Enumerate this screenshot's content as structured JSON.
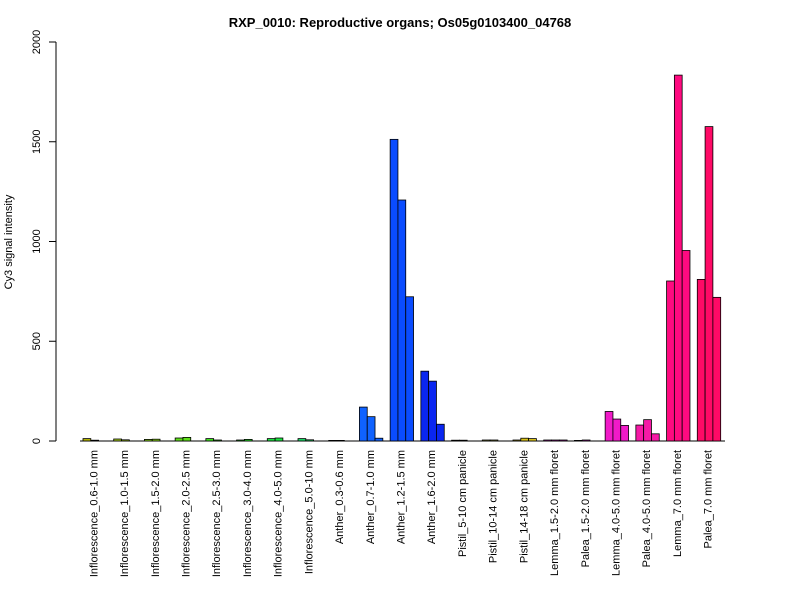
{
  "chart_data": {
    "type": "bar",
    "title": "RXP_0010: Reproductive organs; Os05g0103400_04768",
    "xlabel": "",
    "ylabel": "Cy3 signal intensity",
    "ylim": [
      0,
      2000
    ],
    "yticks": [
      0,
      500,
      1000,
      1500,
      2000
    ],
    "grid": false,
    "legend": "none",
    "groups": [
      {
        "label": "Inflorescence_0.6-1.0 mm",
        "color": "#b3b300",
        "values": [
          12,
          4
        ]
      },
      {
        "label": "Inflorescence_1.0-1.5 mm",
        "color": "#a6cc1a",
        "values": [
          10,
          6
        ]
      },
      {
        "label": "Inflorescence_1.5-2.0 mm",
        "color": "#8cd91a",
        "values": [
          8,
          9
        ]
      },
      {
        "label": "Inflorescence_2.0-2.5 mm",
        "color": "#5fe01a",
        "values": [
          15,
          18
        ]
      },
      {
        "label": "Inflorescence_2.5-3.0 mm",
        "color": "#3ce61a",
        "values": [
          12,
          5
        ]
      },
      {
        "label": "Inflorescence_3.0-4.0 mm",
        "color": "#26e626",
        "values": [
          5,
          8
        ]
      },
      {
        "label": "Inflorescence_4.0-5.0 mm",
        "color": "#1ae640",
        "values": [
          12,
          15
        ]
      },
      {
        "label": "Inflorescence_5.0-10 mm",
        "color": "#1ad966",
        "values": [
          12,
          6
        ]
      },
      {
        "label": "Anther_0.3-0.6 mm",
        "color": "#1a6bff",
        "values": [
          3,
          3
        ]
      },
      {
        "label": "Anther_0.7-1.0 mm",
        "color": "#0f62ff",
        "values": [
          170,
          122,
          14
        ]
      },
      {
        "label": "Anther_1.2-1.5 mm",
        "color": "#0a4cff",
        "values": [
          1512,
          1208,
          723
        ]
      },
      {
        "label": "Anther_1.6-2.0 mm",
        "color": "#0a26f0",
        "values": [
          350,
          300,
          84
        ]
      },
      {
        "label": "Pistil_5-10 cm panicle",
        "color": "#8fb34d",
        "values": [
          4,
          4
        ]
      },
      {
        "label": "Pistil_10-14 cm panicle",
        "color": "#b3b34d",
        "values": [
          5,
          5
        ]
      },
      {
        "label": "Pistil_14-18 cm panicle",
        "color": "#d9c21a",
        "values": [
          5,
          14,
          12
        ]
      },
      {
        "label": "Lemma_1.5-2.0 mm floret",
        "color": "#e61ad9",
        "values": [
          5,
          5,
          5
        ]
      },
      {
        "label": "Palea_1.5-2.0 mm floret",
        "color": "#e61ae0",
        "values": [
          3,
          5
        ]
      },
      {
        "label": "Lemma_4.0-5.0 mm floret",
        "color": "#f01ac8",
        "values": [
          148,
          110,
          78
        ]
      },
      {
        "label": "Palea_4.0-5.0 mm floret",
        "color": "#f51aa6",
        "values": [
          80,
          107,
          36
        ]
      },
      {
        "label": "Lemma_7.0 mm floret",
        "color": "#ff0a80",
        "values": [
          802,
          1834,
          955
        ]
      },
      {
        "label": "Palea_7.0 mm floret",
        "color": "#ff0a66",
        "values": [
          810,
          1576,
          720
        ]
      }
    ]
  }
}
